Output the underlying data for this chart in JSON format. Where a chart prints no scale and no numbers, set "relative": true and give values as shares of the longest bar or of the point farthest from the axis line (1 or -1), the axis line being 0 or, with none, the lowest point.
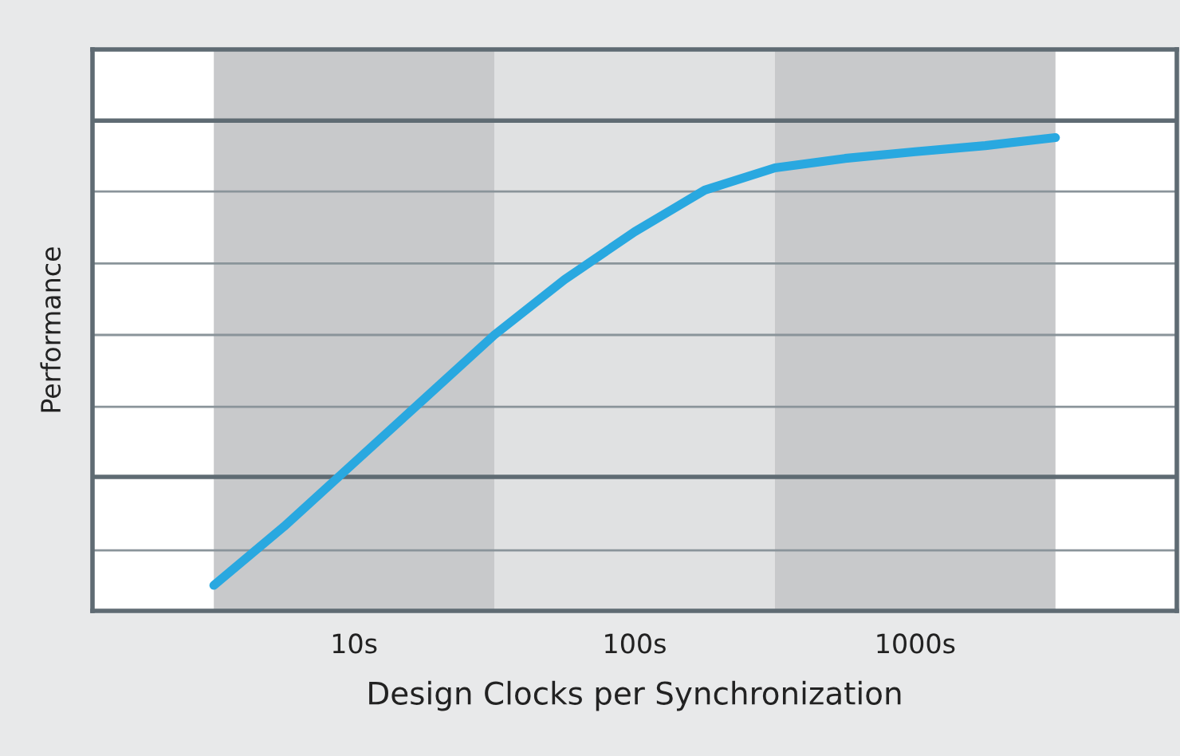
{
  "chart_data": {
    "type": "line",
    "xlabel": "Design Clocks per Synchronization",
    "ylabel": "Performance",
    "relative": true,
    "categories": [
      null,
      null,
      "10s",
      null,
      null,
      null,
      "100s",
      null,
      null,
      null,
      "1000s",
      null,
      null
    ],
    "series": [
      {
        "color": "#29a8e0",
        "values": [
          0.054,
          0.178,
          0.313,
          0.448,
          0.583,
          0.7,
          0.801,
          0.889,
          0.936,
          0.956,
          0.97,
          0.983,
          1.0
        ]
      }
    ],
    "ref_lines": [
      {
        "axis": "y",
        "value": 1.036,
        "color": "#5f6b73"
      },
      {
        "axis": "y",
        "value": 0.886,
        "color": "#8a949a"
      },
      {
        "axis": "y",
        "value": 0.734,
        "color": "#8a949a"
      },
      {
        "axis": "y",
        "value": 0.583,
        "color": "#8a949a"
      },
      {
        "axis": "y",
        "value": 0.431,
        "color": "#8a949a"
      },
      {
        "axis": "y",
        "value": 0.283,
        "color": "#5f6b73"
      },
      {
        "axis": "y",
        "value": 0.128,
        "color": "#8a949a"
      }
    ],
    "marker": "none",
    "line_style": "solid"
  }
}
